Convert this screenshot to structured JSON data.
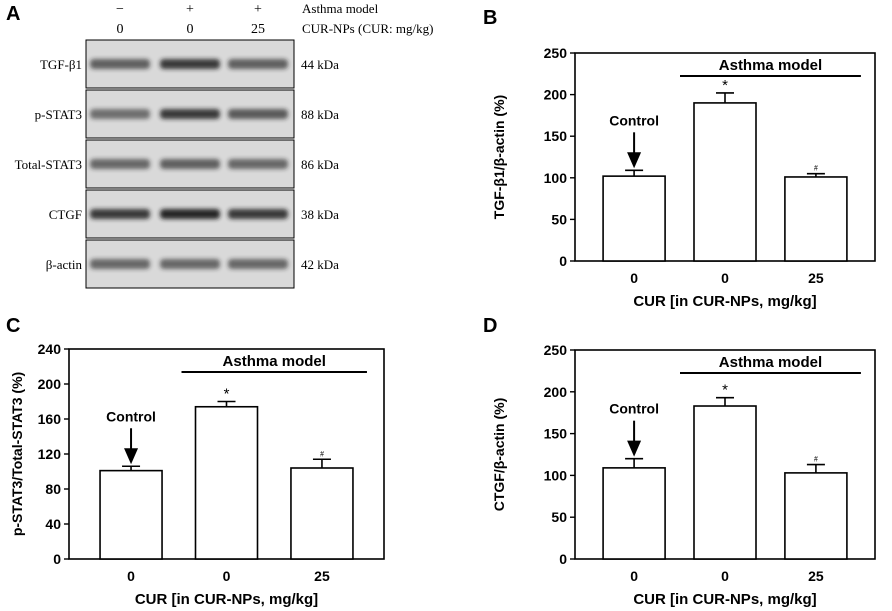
{
  "panel_a": {
    "letter": "A",
    "header_rows": [
      {
        "marks": [
          "−",
          "+",
          "+"
        ],
        "label": "Asthma model"
      },
      {
        "marks": [
          "0",
          "0",
          "25"
        ],
        "label": "CUR-NPs (CUR: mg/kg)"
      }
    ],
    "blots": [
      {
        "protein": "TGF-β1",
        "kda": "44 kDa",
        "intensity": [
          0.55,
          0.85,
          0.55
        ]
      },
      {
        "protein": "p-STAT3",
        "kda": "88 kDa",
        "intensity": [
          0.45,
          0.85,
          0.6
        ]
      },
      {
        "protein": "Total-STAT3",
        "kda": "86 kDa",
        "intensity": [
          0.5,
          0.55,
          0.5
        ]
      },
      {
        "protein": "CTGF",
        "kda": "38 kDa",
        "intensity": [
          0.85,
          1.0,
          0.85
        ]
      },
      {
        "protein": "β-actin",
        "kda": "42 kDa",
        "intensity": [
          0.5,
          0.5,
          0.5
        ]
      }
    ]
  },
  "colors": {
    "bar_fill": "#ffffff",
    "axis": "#000000",
    "blot_bg": "#d9d9d9",
    "band": "#1a1a1a"
  },
  "chart_data": [
    {
      "panel": "B",
      "type": "bar",
      "categories": [
        "0",
        "0",
        "25"
      ],
      "values": [
        102,
        190,
        101
      ],
      "errors": [
        7,
        12,
        4
      ],
      "ylabel": "TGF-β1/β-actin (%)",
      "xlabel": "CUR [in CUR-NPs, mg/kg]",
      "ylim": [
        0,
        250
      ],
      "yticks": [
        0,
        50,
        100,
        150,
        200,
        250
      ],
      "bracket_label": "Asthma model",
      "control_label": "Control",
      "markers": [
        "",
        "*",
        "#"
      ]
    },
    {
      "panel": "C",
      "type": "bar",
      "categories": [
        "0",
        "0",
        "25"
      ],
      "values": [
        101,
        174,
        104
      ],
      "errors": [
        5,
        6,
        10
      ],
      "ylabel": "p-STAT3/Total-STAT3 (%)",
      "xlabel": "CUR [in CUR-NPs, mg/kg]",
      "ylim": [
        0,
        240
      ],
      "yticks": [
        0,
        40,
        80,
        120,
        160,
        200,
        240
      ],
      "bracket_label": "Asthma model",
      "control_label": "Control",
      "markers": [
        "",
        "*",
        "#"
      ]
    },
    {
      "panel": "D",
      "type": "bar",
      "categories": [
        "0",
        "0",
        "25"
      ],
      "values": [
        109,
        183,
        103
      ],
      "errors": [
        11,
        10,
        10
      ],
      "ylabel": "CTGF/β-actin (%)",
      "xlabel": "CUR [in CUR-NPs, mg/kg]",
      "ylim": [
        0,
        250
      ],
      "yticks": [
        0,
        50,
        100,
        150,
        200,
        250
      ],
      "bracket_label": "Asthma model",
      "control_label": "Control",
      "markers": [
        "",
        "*",
        "#"
      ]
    }
  ]
}
